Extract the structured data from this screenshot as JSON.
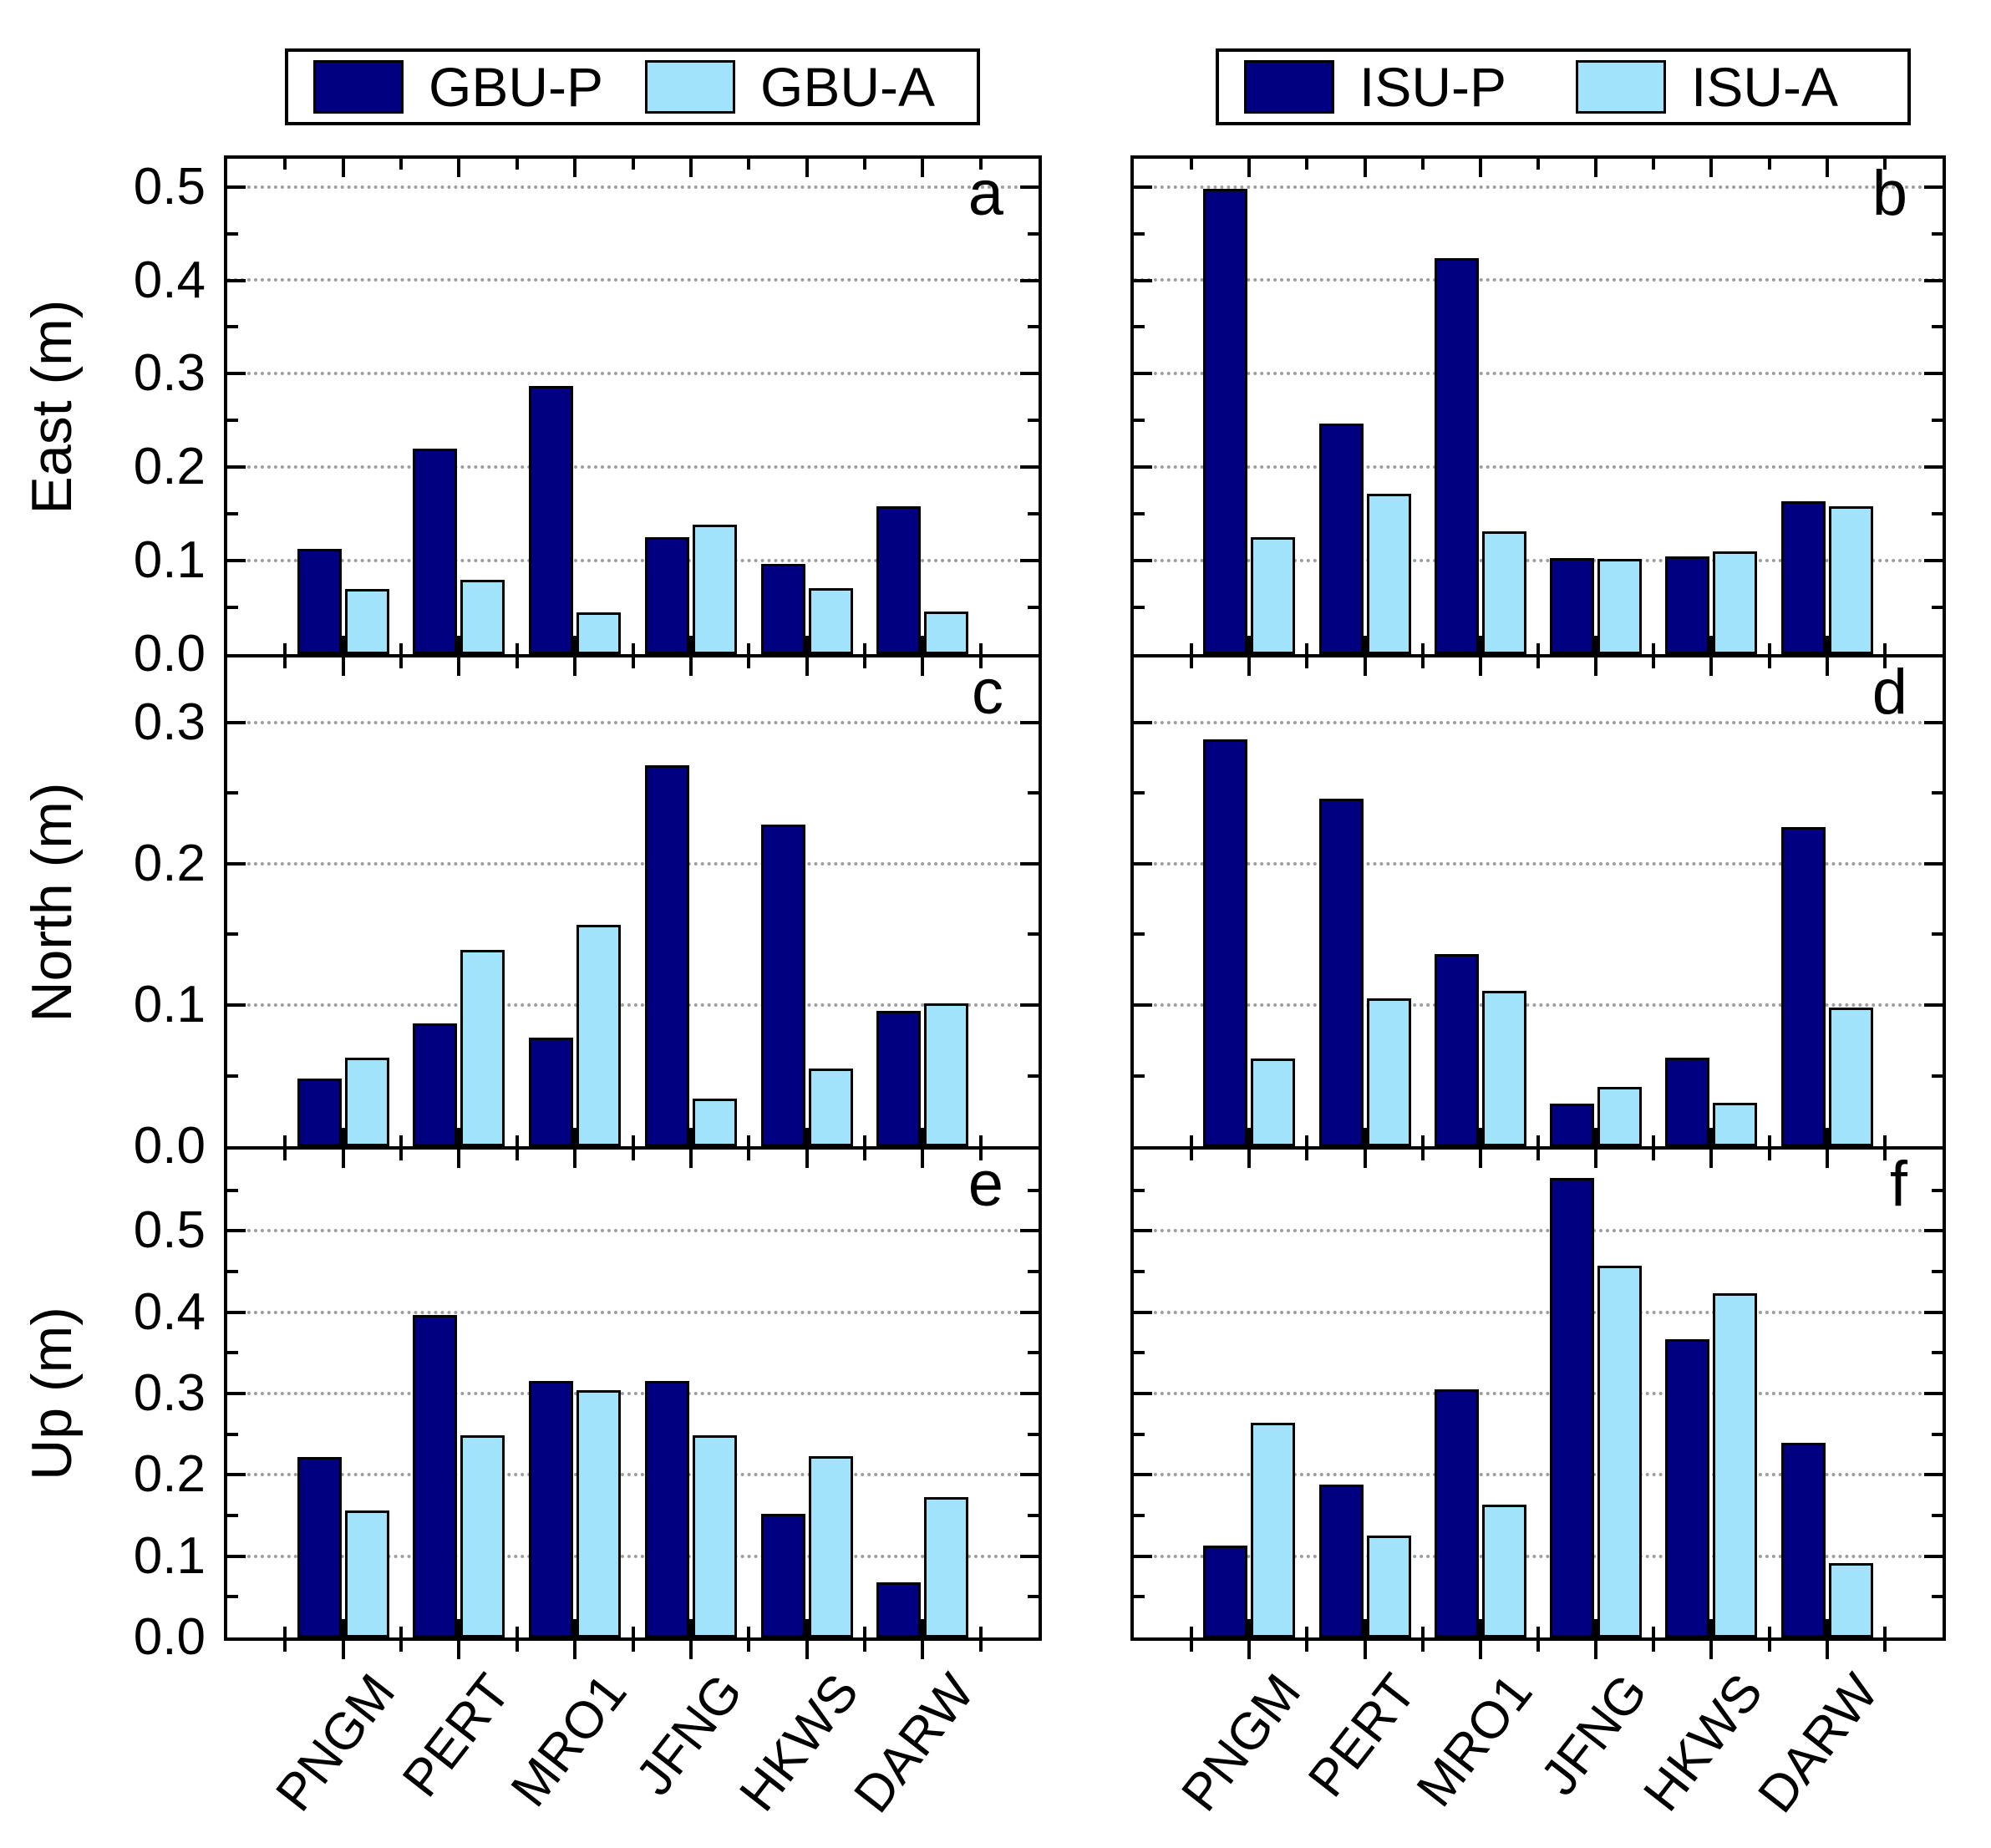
{
  "figure": {
    "colors": {
      "primary": "#000080",
      "secondary": "#a0e3fb",
      "grid": "#9e9e9e",
      "frame": "#000000"
    },
    "legends": [
      {
        "entries": [
          {
            "label": "GBU-P",
            "color": "#000080"
          },
          {
            "label": "GBU-A",
            "color": "#a0e3fb"
          }
        ]
      },
      {
        "entries": [
          {
            "label": "ISU-P",
            "color": "#000080"
          },
          {
            "label": "ISU-A",
            "color": "#a0e3fb"
          }
        ]
      }
    ]
  },
  "chart_data": [
    {
      "type": "bar",
      "panel": "a",
      "ylabel": "East (m)",
      "ylim": [
        0,
        0.53
      ],
      "ytick_step": 0.1,
      "ytick_labels": [
        "0.0",
        "0.1",
        "0.2",
        "0.3",
        "0.4",
        "0.5"
      ],
      "grid": "dotted-horizontal",
      "categories": [
        "PNGM",
        "PERT",
        "MRO1",
        "JFNG",
        "HKWS",
        "DARW"
      ],
      "series": [
        {
          "name": "GBU-P",
          "values": [
            0.113,
            0.22,
            0.287,
            0.125,
            0.097,
            0.158
          ]
        },
        {
          "name": "GBU-A",
          "values": [
            0.07,
            0.08,
            0.045,
            0.139,
            0.071,
            0.046
          ]
        }
      ]
    },
    {
      "type": "bar",
      "panel": "b",
      "ylabel": "East (m)",
      "ylim": [
        0,
        0.53
      ],
      "ytick_step": 0.1,
      "ytick_labels": [
        "0.0",
        "0.1",
        "0.2",
        "0.3",
        "0.4",
        "0.5"
      ],
      "grid": "dotted-horizontal",
      "categories": [
        "PNGM",
        "PERT",
        "MRO1",
        "JFNG",
        "HKWS",
        "DARW"
      ],
      "series": [
        {
          "name": "ISU-P",
          "values": [
            0.498,
            0.247,
            0.424,
            0.103,
            0.105,
            0.164
          ]
        },
        {
          "name": "ISU-A",
          "values": [
            0.125,
            0.172,
            0.131,
            0.102,
            0.11,
            0.158
          ]
        }
      ]
    },
    {
      "type": "bar",
      "panel": "c",
      "ylabel": "North (m)",
      "ylim": [
        0,
        0.346
      ],
      "ytick_step": 0.1,
      "ytick_labels": [
        "0.0",
        "0.1",
        "0.2",
        "0.3"
      ],
      "grid": "dotted-horizontal",
      "categories": [
        "PNGM",
        "PERT",
        "MRO1",
        "JFNG",
        "HKWS",
        "DARW"
      ],
      "series": [
        {
          "name": "GBU-P",
          "values": [
            0.048,
            0.087,
            0.077,
            0.27,
            0.228,
            0.096
          ]
        },
        {
          "name": "GBU-A",
          "values": [
            0.063,
            0.139,
            0.157,
            0.034,
            0.055,
            0.101
          ]
        }
      ]
    },
    {
      "type": "bar",
      "panel": "d",
      "ylabel": "North (m)",
      "ylim": [
        0,
        0.346
      ],
      "ytick_step": 0.1,
      "ytick_labels": [
        "0.0",
        "0.1",
        "0.2",
        "0.3"
      ],
      "grid": "dotted-horizontal",
      "categories": [
        "PNGM",
        "PERT",
        "MRO1",
        "JFNG",
        "HKWS",
        "DARW"
      ],
      "series": [
        {
          "name": "ISU-P",
          "values": [
            0.288,
            0.246,
            0.136,
            0.03,
            0.063,
            0.226
          ]
        },
        {
          "name": "ISU-A",
          "values": [
            0.062,
            0.105,
            0.11,
            0.042,
            0.031,
            0.098
          ]
        }
      ]
    },
    {
      "type": "bar",
      "panel": "e",
      "ylabel": "Up (m)",
      "ylim": [
        0,
        0.6
      ],
      "ytick_step": 0.1,
      "ytick_labels": [
        "0.0",
        "0.1",
        "0.2",
        "0.3",
        "0.4",
        "0.5"
      ],
      "grid": "dotted-horizontal",
      "categories": [
        "PNGM",
        "PERT",
        "MRO1",
        "JFNG",
        "HKWS",
        "DARW"
      ],
      "series": [
        {
          "name": "GBU-P",
          "values": [
            0.222,
            0.397,
            0.315,
            0.315,
            0.152,
            0.068
          ]
        },
        {
          "name": "GBU-A",
          "values": [
            0.156,
            0.249,
            0.304,
            0.249,
            0.223,
            0.173
          ]
        }
      ]
    },
    {
      "type": "bar",
      "panel": "f",
      "ylabel": "Up (m)",
      "ylim": [
        0,
        0.6
      ],
      "ytick_step": 0.1,
      "ytick_labels": [
        "0.0",
        "0.1",
        "0.2",
        "0.3",
        "0.4",
        "0.5"
      ],
      "grid": "dotted-horizontal",
      "categories": [
        "PNGM",
        "PERT",
        "MRO1",
        "JFNG",
        "HKWS",
        "DARW"
      ],
      "series": [
        {
          "name": "ISU-P",
          "values": [
            0.113,
            0.188,
            0.305,
            0.565,
            0.367,
            0.239
          ]
        },
        {
          "name": "ISU-A",
          "values": [
            0.264,
            0.125,
            0.163,
            0.457,
            0.423,
            0.092
          ]
        }
      ]
    }
  ]
}
